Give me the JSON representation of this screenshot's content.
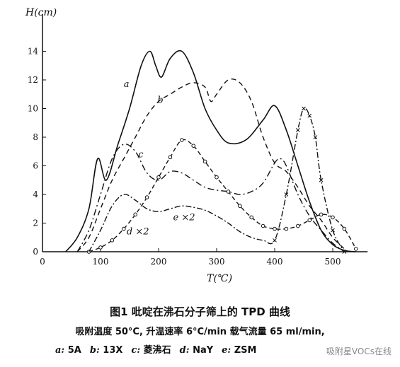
{
  "chart_data": {
    "type": "line",
    "title": "图1  吡啶在沸石分子筛上的 TPD 曲线",
    "xlabel": "T(℃)",
    "ylabel": "H(cm)",
    "xlim": [
      0,
      560
    ],
    "ylim": [
      0,
      16
    ],
    "x_ticks": [
      0,
      100,
      200,
      300,
      400,
      500
    ],
    "y_ticks": [
      0,
      2,
      4,
      6,
      8,
      10,
      12,
      14
    ],
    "y_tick_labels": [
      "0",
      "2",
      "4",
      "6",
      "8",
      "10",
      "12",
      "14"
    ],
    "grid": false,
    "series": [
      {
        "name": "a",
        "style": "solid",
        "x": [
          40,
          60,
          80,
          95,
          110,
          130,
          150,
          170,
          185,
          195,
          205,
          220,
          240,
          260,
          280,
          300,
          320,
          350,
          380,
          400,
          420,
          440,
          460,
          480,
          500,
          520,
          540
        ],
        "y": [
          0,
          1,
          3,
          6.5,
          5,
          7.5,
          10,
          13,
          14,
          13,
          12.2,
          13.5,
          14,
          12.5,
          10,
          8.5,
          7.6,
          7.8,
          9.2,
          10.2,
          8.5,
          6,
          3.5,
          1.5,
          0.5,
          0.1,
          0
        ]
      },
      {
        "name": "b",
        "style": "dashed",
        "x": [
          60,
          80,
          100,
          120,
          140,
          160,
          180,
          200,
          220,
          240,
          260,
          280,
          290,
          300,
          320,
          340,
          360,
          380,
          400,
          420,
          440,
          460,
          480,
          500,
          520
        ],
        "y": [
          0,
          1,
          3,
          5,
          6.5,
          8,
          9.5,
          10.5,
          11,
          11.5,
          11.8,
          11.5,
          10.5,
          11,
          12,
          11.8,
          10.5,
          8,
          6.2,
          5.6,
          4.5,
          3.2,
          2.2,
          1,
          0.2
        ]
      },
      {
        "name": "c",
        "style": "dash-dot",
        "x": [
          60,
          80,
          100,
          120,
          140,
          160,
          180,
          200,
          220,
          240,
          260,
          280,
          300,
          320,
          340,
          360,
          380,
          400,
          410,
          420,
          440,
          460,
          480,
          500,
          520
        ],
        "y": [
          0,
          1.5,
          4,
          6.5,
          7.5,
          7,
          5.5,
          5,
          5.6,
          5.5,
          5,
          4.5,
          4.3,
          4.2,
          4,
          4.2,
          4.8,
          6.2,
          6.5,
          6,
          4,
          2.5,
          1.5,
          0.6,
          0
        ]
      },
      {
        "name": "d (×2)",
        "style": "dashed-circles",
        "x": [
          80,
          100,
          120,
          140,
          160,
          180,
          200,
          220,
          240,
          260,
          280,
          300,
          320,
          340,
          360,
          380,
          400,
          420,
          440,
          460,
          480,
          500,
          520,
          540
        ],
        "y": [
          0,
          0.3,
          0.8,
          1.6,
          2.6,
          3.8,
          5.2,
          6.6,
          7.8,
          7.4,
          6.3,
          5.2,
          4.2,
          3.2,
          2.4,
          1.8,
          1.6,
          1.6,
          1.8,
          2.2,
          2.6,
          2.4,
          1.6,
          0.2
        ]
      },
      {
        "name": "e (×2)",
        "style": "dash-dot-cross",
        "x": [
          80,
          100,
          120,
          140,
          160,
          180,
          200,
          220,
          240,
          260,
          280,
          300,
          320,
          340,
          360,
          380,
          400,
          420,
          440,
          450,
          460,
          470,
          480,
          500,
          520
        ],
        "y": [
          0,
          1.5,
          3.2,
          4,
          3.6,
          3,
          2.8,
          3,
          3.2,
          3.1,
          2.9,
          2.5,
          2,
          1.4,
          1,
          0.8,
          0.8,
          4,
          8.5,
          10,
          9.5,
          8,
          5,
          1.5,
          0
        ]
      }
    ],
    "annotations": [
      {
        "text": "a",
        "x": 140,
        "y": 11.5
      },
      {
        "text": "b",
        "x": 198,
        "y": 10.4
      },
      {
        "text": "c",
        "x": 165,
        "y": 6.6
      },
      {
        "text": "e ×2",
        "x": 225,
        "y": 2.2
      },
      {
        "text": "d ×2",
        "x": 145,
        "y": 1.2
      }
    ]
  },
  "caption": {
    "title": "图1   吡啶在沸石分子筛上的 TPD 曲线",
    "conditions": "吸附温度 50°C, 升温速率 6°C/min  载气流量 65 ml/min,",
    "legend": [
      {
        "key": "a:",
        "value": "5A"
      },
      {
        "key": "b:",
        "value": "13X"
      },
      {
        "key": "c:",
        "value": "菱沸石"
      },
      {
        "key": "d:",
        "value": "NaY"
      },
      {
        "key": "e:",
        "value": "ZSM"
      }
    ]
  },
  "watermark": "吸附星VOCs在线"
}
